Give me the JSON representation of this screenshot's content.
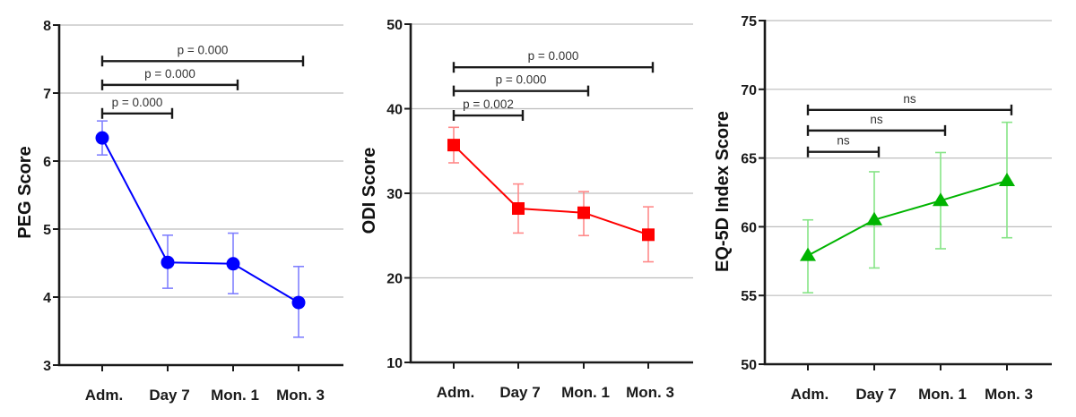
{
  "chart_data": [
    {
      "type": "line",
      "title": "",
      "xlabel": "",
      "ylabel": "PEG Score",
      "categories": [
        "Adm.",
        "Day 7",
        "Mon. 1",
        "Mon. 3"
      ],
      "ylim": [
        3,
        8
      ],
      "yticks": [
        3,
        4,
        5,
        6,
        7,
        8
      ],
      "grid": true,
      "marker": "circle",
      "color": "#0000ff",
      "errorbar_color": "#8080ff",
      "series": [
        {
          "name": "PEG Score",
          "values": [
            6.34,
            4.51,
            4.49,
            3.92
          ],
          "error_upper": [
            6.59,
            4.91,
            4.94,
            4.45
          ],
          "error_lower": [
            6.09,
            4.13,
            4.05,
            3.41
          ]
        }
      ],
      "annotations": [
        {
          "from": "Adm.",
          "to": "Day 7",
          "label": "p = 0.000",
          "y": 6.7
        },
        {
          "from": "Adm.",
          "to": "Mon. 1",
          "label": "p = 0.000",
          "y": 7.12
        },
        {
          "from": "Adm.",
          "to": "Mon. 3",
          "label": "p = 0.000",
          "y": 7.47
        }
      ]
    },
    {
      "type": "line",
      "title": "",
      "xlabel": "",
      "ylabel": "ODI  Score",
      "categories": [
        "Adm.",
        "Day 7",
        "Mon. 1",
        "Mon. 3"
      ],
      "ylim": [
        10,
        50
      ],
      "yticks": [
        10,
        20,
        30,
        40,
        50
      ],
      "grid": true,
      "marker": "square",
      "color": "#ff0000",
      "errorbar_color": "#ff8a8a",
      "series": [
        {
          "name": "ODI Score",
          "values": [
            35.7,
            28.2,
            27.7,
            25.1
          ],
          "error_upper": [
            37.8,
            31.1,
            30.2,
            28.4
          ],
          "error_lower": [
            33.6,
            25.3,
            25.0,
            21.9
          ]
        }
      ],
      "annotations": [
        {
          "from": "Adm.",
          "to": "Day 7",
          "label": "p = 0.002",
          "y": 39.2
        },
        {
          "from": "Adm.",
          "to": "Mon. 1",
          "label": "p = 0.000",
          "y": 42.1
        },
        {
          "from": "Adm.",
          "to": "Mon. 3",
          "label": "p = 0.000",
          "y": 44.9
        }
      ]
    },
    {
      "type": "line",
      "title": "",
      "xlabel": "",
      "ylabel": "EQ-5D  Index Score",
      "categories": [
        "Adm.",
        "Day 7",
        "Mon. 1",
        "Mon. 3"
      ],
      "ylim": [
        50,
        75
      ],
      "yticks": [
        50,
        55,
        60,
        65,
        70,
        75
      ],
      "grid": true,
      "marker": "triangle",
      "color": "#00b400",
      "errorbar_color": "#86e486",
      "series": [
        {
          "name": "EQ-5D Index Score",
          "values": [
            57.9,
            60.5,
            61.9,
            63.35
          ],
          "error_upper": [
            60.5,
            64.0,
            65.4,
            67.6
          ],
          "error_lower": [
            55.2,
            57.0,
            58.4,
            59.2
          ]
        }
      ],
      "annotations": [
        {
          "from": "Adm.",
          "to": "Day 7",
          "label": "ns",
          "y": 65.45
        },
        {
          "from": "Adm.",
          "to": "Mon. 1",
          "label": "ns",
          "y": 67.0
        },
        {
          "from": "Adm.",
          "to": "Mon. 3",
          "label": "ns",
          "y": 68.5
        }
      ]
    }
  ]
}
